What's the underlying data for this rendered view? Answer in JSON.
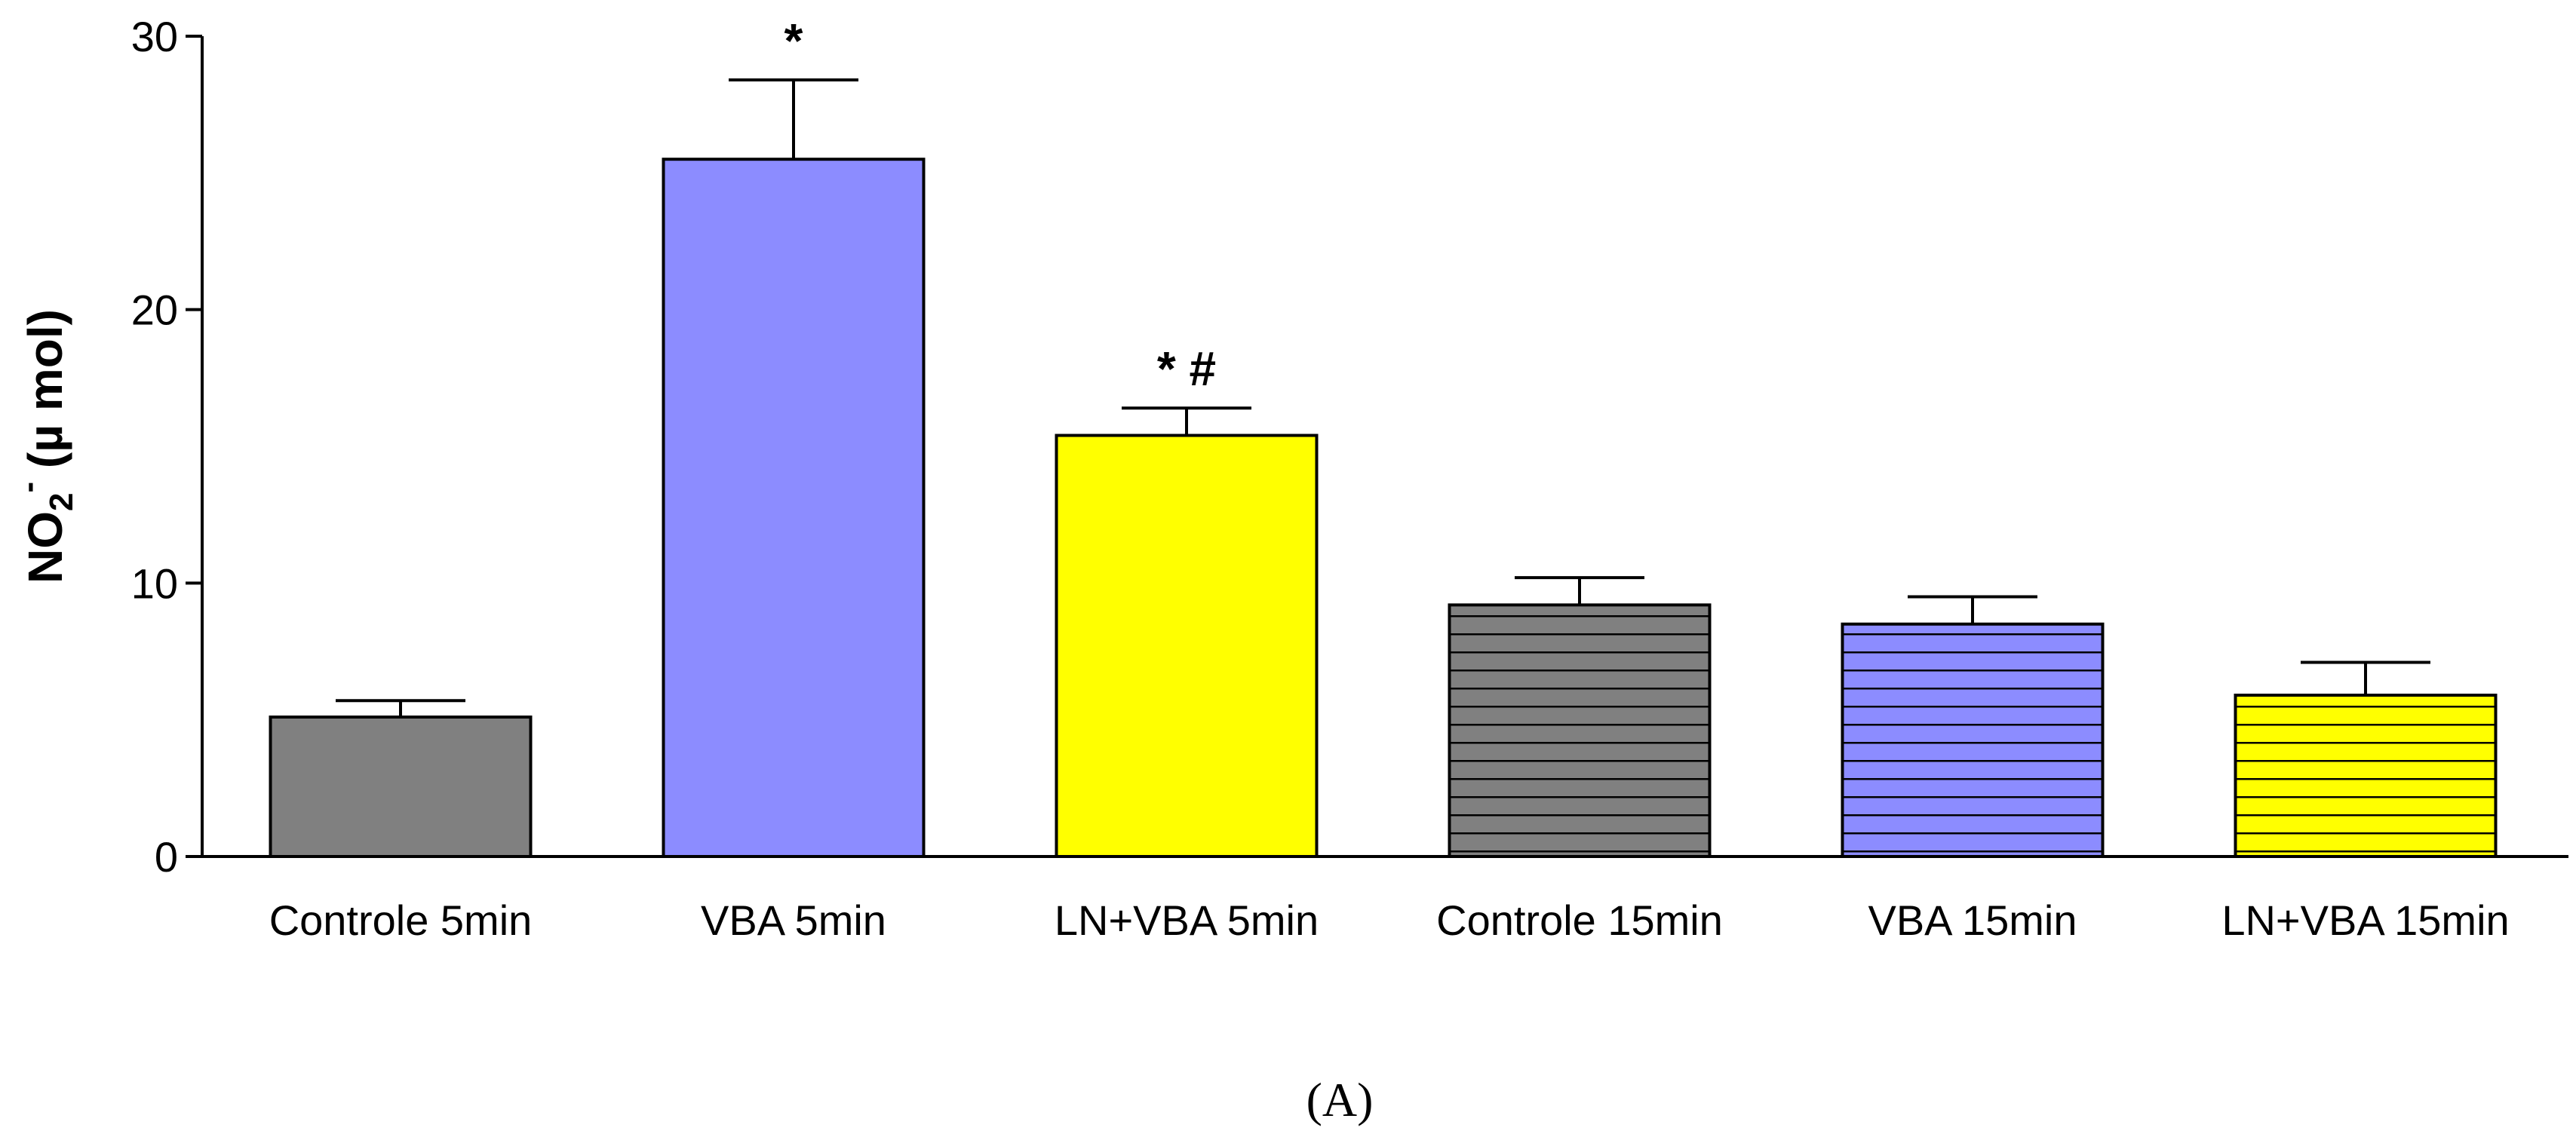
{
  "chart_data": {
    "type": "bar",
    "title": "",
    "xlabel": "",
    "ylabel": "NO2- (µ mol)",
    "ylabel_parts": {
      "base": "NO",
      "sub": "2",
      "sup": "-",
      "unit": " (µ mol)"
    },
    "ylim": [
      0,
      30
    ],
    "yticks": [
      0,
      10,
      20,
      30
    ],
    "grid": false,
    "categories": [
      "Controle 5min",
      "VBA 5min",
      "LN+VBA 5min",
      "Controle 15min",
      "VBA 15min",
      "LN+VBA 15min"
    ],
    "values": [
      5.1,
      25.5,
      15.4,
      9.2,
      8.5,
      5.9
    ],
    "errors": [
      0.6,
      2.9,
      1.0,
      1.0,
      1.0,
      1.2
    ],
    "annotations": [
      "",
      "*",
      "* #",
      "",
      "",
      ""
    ],
    "colors": [
      "#808080",
      "#8c8cff",
      "#ffff00",
      "#808080",
      "#8c8cff",
      "#ffff00"
    ],
    "hatched": [
      false,
      false,
      false,
      true,
      true,
      true
    ],
    "panel_label": "(A)"
  }
}
